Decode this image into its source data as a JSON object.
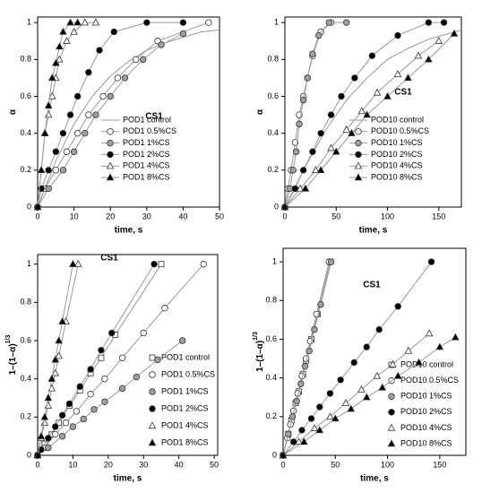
{
  "chart_data": [
    {
      "type": "line",
      "title": "CS1",
      "x_label": "time, s",
      "y_label": "α",
      "legend_line": true,
      "xlim": [
        0,
        50
      ],
      "ylim": [
        0,
        1.03
      ],
      "xticks": [
        0,
        10,
        20,
        30,
        40,
        50
      ],
      "yticks": [
        0,
        0.2,
        0.4,
        0.6,
        0.8,
        1
      ],
      "series": [
        {
          "name": "POD1 control",
          "color": "#999999",
          "marker": "none",
          "fill": "none",
          "x": [
            0,
            5,
            10,
            15,
            20,
            25,
            30,
            35,
            40,
            45,
            50
          ],
          "values": [
            0,
            0.25,
            0.45,
            0.6,
            0.71,
            0.79,
            0.85,
            0.89,
            0.92,
            0.95,
            0.96
          ]
        },
        {
          "name": "POD1 0.5%CS",
          "color": "#999999",
          "marker": "circle",
          "fill": "#ffffff",
          "x": [
            0,
            2,
            5,
            8,
            11,
            14,
            18,
            22,
            27,
            33,
            47
          ],
          "values": [
            0,
            0.1,
            0.2,
            0.3,
            0.4,
            0.5,
            0.6,
            0.7,
            0.8,
            0.9,
            1
          ]
        },
        {
          "name": "POD1 1%CS",
          "color": "#999999",
          "marker": "circle",
          "fill": "#a0a0a0",
          "x": [
            0,
            3,
            7,
            10,
            13,
            16,
            20,
            24,
            29,
            34,
            40
          ],
          "values": [
            0,
            0.1,
            0.2,
            0.3,
            0.4,
            0.5,
            0.6,
            0.7,
            0.8,
            0.88,
            0.94
          ]
        },
        {
          "name": "POD1 2%CS",
          "color": "#999999",
          "marker": "circle",
          "fill": "#000000",
          "x": [
            0,
            1,
            3,
            5,
            7,
            9,
            11,
            14,
            17,
            21,
            30,
            40
          ],
          "values": [
            0,
            0.1,
            0.2,
            0.3,
            0.4,
            0.5,
            0.6,
            0.73,
            0.85,
            0.95,
            1,
            1
          ]
        },
        {
          "name": "POD1 4%CS",
          "color": "#999999",
          "marker": "triangle",
          "fill": "#ffffff",
          "x": [
            0,
            1,
            2,
            3,
            4,
            5,
            6,
            8,
            10,
            13,
            16
          ],
          "values": [
            0,
            0.2,
            0.4,
            0.5,
            0.6,
            0.7,
            0.8,
            0.9,
            0.95,
            1,
            1
          ]
        },
        {
          "name": "POD1 8%CS",
          "color": "#999999",
          "marker": "triangle",
          "fill": "#000000",
          "x": [
            0,
            1,
            2,
            3,
            4,
            5,
            6,
            7,
            9,
            11
          ],
          "values": [
            0,
            0.2,
            0.4,
            0.55,
            0.7,
            0.78,
            0.87,
            0.95,
            1,
            1
          ]
        }
      ]
    },
    {
      "type": "line",
      "title": "CS1",
      "x_label": "time, s",
      "y_label": "α",
      "legend_line": true,
      "xlim": [
        0,
        172
      ],
      "ylim": [
        0,
        1.03
      ],
      "xticks": [
        0,
        50,
        100,
        150
      ],
      "yticks": [
        0,
        0.2,
        0.4,
        0.6,
        0.8,
        1
      ],
      "series": [
        {
          "name": "POD10 control",
          "color": "#999999",
          "marker": "none",
          "fill": "none",
          "x": [
            0,
            20,
            40,
            60,
            80,
            100,
            120,
            140,
            160,
            172
          ],
          "values": [
            0,
            0.22,
            0.42,
            0.58,
            0.7,
            0.8,
            0.86,
            0.91,
            0.94,
            0.96
          ]
        },
        {
          "name": "POD10 0.5%CS",
          "color": "#999999",
          "marker": "circle",
          "fill": "#ffffff",
          "x": [
            0,
            3,
            6,
            10,
            14,
            18,
            22,
            27,
            35,
            45
          ],
          "values": [
            0,
            0.1,
            0.2,
            0.35,
            0.5,
            0.6,
            0.7,
            0.82,
            0.95,
            1
          ]
        },
        {
          "name": "POD10 1%CS",
          "color": "#999999",
          "marker": "circle",
          "fill": "#a0a0a0",
          "x": [
            0,
            5,
            8,
            11,
            14,
            18,
            22,
            27,
            33,
            43,
            60
          ],
          "values": [
            0,
            0.1,
            0.2,
            0.3,
            0.45,
            0.58,
            0.7,
            0.83,
            0.93,
            1,
            1
          ]
        },
        {
          "name": "POD10 2%CS",
          "color": "#999999",
          "marker": "circle",
          "fill": "#000000",
          "x": [
            0,
            10,
            18,
            27,
            35,
            45,
            55,
            68,
            85,
            110,
            140,
            155
          ],
          "values": [
            0,
            0.1,
            0.2,
            0.3,
            0.4,
            0.5,
            0.6,
            0.7,
            0.82,
            0.93,
            1,
            1
          ]
        },
        {
          "name": "POD10 4%CS",
          "color": "#999999",
          "marker": "triangle",
          "fill": "#ffffff",
          "x": [
            0,
            15,
            30,
            45,
            60,
            75,
            90,
            110,
            130,
            150
          ],
          "values": [
            0,
            0.1,
            0.2,
            0.32,
            0.42,
            0.52,
            0.62,
            0.72,
            0.82,
            0.9
          ]
        },
        {
          "name": "POD10 8%CS",
          "color": "#999999",
          "marker": "triangle",
          "fill": "#000000",
          "x": [
            0,
            20,
            35,
            50,
            65,
            80,
            100,
            120,
            140,
            165
          ],
          "values": [
            0,
            0.1,
            0.2,
            0.3,
            0.4,
            0.5,
            0.6,
            0.7,
            0.8,
            0.94
          ]
        }
      ]
    },
    {
      "type": "line",
      "title": "CS1",
      "x_label": "time, s",
      "y_label": "1–(1–α)",
      "y_label_exponent": "1/3",
      "legend_line": false,
      "xlim": [
        0,
        51
      ],
      "ylim": [
        0,
        1.05
      ],
      "xticks": [
        0,
        10,
        20,
        30,
        40,
        50
      ],
      "yticks": [
        0,
        0.2,
        0.4,
        0.6,
        0.8,
        1
      ],
      "series": [
        {
          "name": "POD1 control",
          "color": "#999999",
          "marker": "square",
          "fill": "#ffffff",
          "x": [
            0,
            2,
            4,
            6,
            9,
            12,
            15,
            18,
            22,
            35
          ],
          "values": [
            0,
            0.06,
            0.11,
            0.17,
            0.26,
            0.34,
            0.43,
            0.51,
            0.63,
            1
          ]
        },
        {
          "name": "POD1 0.5%CS",
          "color": "#999999",
          "marker": "circle",
          "fill": "#ffffff",
          "x": [
            0,
            2,
            5,
            8,
            11,
            15,
            19,
            24,
            30,
            36,
            47
          ],
          "values": [
            0,
            0.04,
            0.11,
            0.17,
            0.23,
            0.32,
            0.4,
            0.51,
            0.64,
            0.77,
            1
          ]
        },
        {
          "name": "POD1 1%CS",
          "color": "#999999",
          "marker": "circle",
          "fill": "#a0a0a0",
          "x": [
            0,
            3,
            7,
            10,
            13,
            16,
            19,
            24,
            28,
            34,
            41
          ],
          "values": [
            0,
            0.04,
            0.1,
            0.15,
            0.19,
            0.24,
            0.28,
            0.35,
            0.41,
            0.5,
            0.6
          ]
        },
        {
          "name": "POD1 2%CS",
          "color": "#999999",
          "marker": "circle",
          "fill": "#000000",
          "x": [
            0,
            1,
            3,
            5,
            7,
            9,
            12,
            15,
            18,
            21,
            33
          ],
          "values": [
            0,
            0.03,
            0.09,
            0.15,
            0.21,
            0.27,
            0.36,
            0.45,
            0.55,
            0.64,
            1
          ]
        },
        {
          "name": "POD1 4%CS",
          "color": "#999999",
          "marker": "triangle",
          "fill": "#ffffff",
          "x": [
            0,
            1,
            2,
            3,
            4,
            5,
            6,
            8,
            11.5
          ],
          "values": [
            0,
            0.09,
            0.17,
            0.26,
            0.35,
            0.43,
            0.52,
            0.7,
            1
          ]
        },
        {
          "name": "POD1 8%CS",
          "color": "#999999",
          "marker": "triangle",
          "fill": "#000000",
          "x": [
            0,
            1,
            2,
            3,
            4,
            5,
            6,
            7,
            10
          ],
          "values": [
            0,
            0.1,
            0.2,
            0.3,
            0.4,
            0.5,
            0.6,
            0.7,
            1
          ]
        }
      ]
    },
    {
      "type": "line",
      "title": "CS1",
      "x_label": "time, s",
      "y_label": "1–(1–α)",
      "y_label_exponent": "1/3",
      "legend_line": false,
      "xlim": [
        0,
        175
      ],
      "ylim": [
        0,
        1.07
      ],
      "xticks": [
        0,
        50,
        100,
        150
      ],
      "yticks": [
        0,
        0.2,
        0.4,
        0.6,
        0.8,
        1
      ],
      "series": [
        {
          "name": "POD10 control",
          "color": "#999999",
          "marker": "square",
          "fill": "#ffffff",
          "x": [
            0,
            5,
            8,
            12,
            15,
            19,
            22,
            27,
            33,
            45
          ],
          "values": [
            0,
            0.11,
            0.18,
            0.27,
            0.33,
            0.42,
            0.49,
            0.6,
            0.73,
            1
          ]
        },
        {
          "name": "POD10 0.5%CS",
          "color": "#999999",
          "marker": "circle",
          "fill": "#ffffff",
          "x": [
            0,
            4,
            7,
            10,
            14,
            18,
            22,
            26,
            32,
            44
          ],
          "values": [
            0,
            0.09,
            0.16,
            0.23,
            0.32,
            0.41,
            0.5,
            0.59,
            0.73,
            1
          ]
        },
        {
          "name": "POD10 1%CS",
          "color": "#999999",
          "marker": "circle",
          "fill": "#a0a0a0",
          "x": [
            0,
            5,
            9,
            13,
            17,
            21,
            25,
            30,
            36,
            46
          ],
          "values": [
            0,
            0.11,
            0.2,
            0.28,
            0.37,
            0.46,
            0.54,
            0.65,
            0.78,
            1
          ]
        },
        {
          "name": "POD10 2%CS",
          "color": "#999999",
          "marker": "circle",
          "fill": "#000000",
          "x": [
            0,
            10,
            18,
            27,
            35,
            45,
            55,
            68,
            80,
            92,
            110,
            142
          ],
          "values": [
            0,
            0.07,
            0.13,
            0.19,
            0.25,
            0.32,
            0.39,
            0.48,
            0.56,
            0.65,
            0.77,
            1
          ]
        },
        {
          "name": "POD10 4%CS",
          "color": "#999999",
          "marker": "triangle",
          "fill": "#ffffff",
          "x": [
            0,
            15,
            30,
            45,
            60,
            75,
            90,
            105,
            120,
            140
          ],
          "values": [
            0,
            0.07,
            0.14,
            0.2,
            0.27,
            0.34,
            0.41,
            0.47,
            0.54,
            0.63
          ]
        },
        {
          "name": "POD10 8%CS",
          "color": "#999999",
          "marker": "triangle",
          "fill": "#000000",
          "x": [
            0,
            20,
            35,
            50,
            65,
            80,
            95,
            110,
            130,
            150,
            165
          ],
          "values": [
            0,
            0.07,
            0.13,
            0.19,
            0.24,
            0.3,
            0.35,
            0.41,
            0.48,
            0.56,
            0.61
          ]
        }
      ]
    }
  ]
}
